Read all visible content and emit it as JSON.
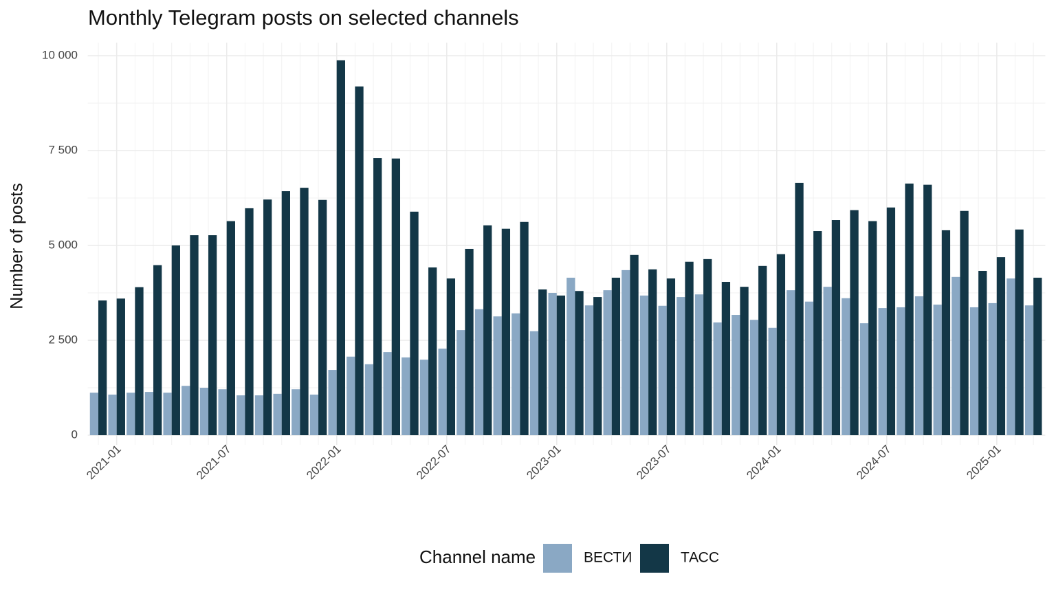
{
  "chart_data": {
    "type": "bar",
    "title": "Monthly Telegram posts on selected channels",
    "y_label": "Number of posts",
    "legend_title": "Channel name",
    "categories": [
      null,
      "2021-01",
      null,
      null,
      null,
      null,
      null,
      "2021-07",
      null,
      null,
      null,
      null,
      null,
      "2022-01",
      null,
      null,
      null,
      null,
      null,
      "2022-07",
      null,
      null,
      null,
      null,
      null,
      "2023-01",
      null,
      null,
      null,
      null,
      null,
      "2023-07",
      null,
      null,
      null,
      null,
      null,
      "2024-01",
      null,
      null,
      null,
      null,
      null,
      "2024-07",
      null,
      null,
      null,
      null,
      null,
      "2025-01",
      null,
      null
    ],
    "series": [
      {
        "name": "ВЕСТИ",
        "color": "#8aa8c4",
        "values": [
          1120,
          1070,
          1120,
          1140,
          1120,
          1300,
          1250,
          1210,
          1050,
          1050,
          1090,
          1210,
          1070,
          1720,
          2070,
          1870,
          2190,
          2050,
          1990,
          2280,
          2770,
          3320,
          3130,
          3210,
          2740,
          3750,
          4150,
          3420,
          3820,
          4350,
          3680,
          3410,
          3640,
          3710,
          2970,
          3170,
          3040,
          2830,
          3820,
          3520,
          3910,
          3610,
          2950,
          3350,
          3370,
          3660,
          3440,
          4170,
          3370,
          3480,
          4130,
          3420
        ]
      },
      {
        "name": "ТАСС",
        "color": "#133747",
        "values": [
          3550,
          3600,
          3900,
          4480,
          5000,
          5270,
          5270,
          5640,
          5980,
          6210,
          6430,
          6520,
          6200,
          9880,
          9190,
          7300,
          7290,
          5890,
          4420,
          4130,
          4910,
          5530,
          5440,
          5620,
          3840,
          3680,
          3800,
          3640,
          4150,
          4750,
          4370,
          4130,
          4570,
          4640,
          4040,
          3910,
          4460,
          4770,
          6650,
          5380,
          5670,
          5930,
          5640,
          6000,
          6630,
          6600,
          5400,
          5910,
          4330,
          4690,
          5420,
          4150
        ]
      }
    ],
    "ylim": [
      0,
      10000
    ],
    "yticks": [
      0,
      {
        "value": 2500,
        "label": "2 500"
      },
      {
        "value": 5000,
        "label": "5 000"
      },
      {
        "value": 7500,
        "label": "7 500"
      },
      {
        "value": 10000,
        "label": "10 000"
      }
    ],
    "grid": true,
    "legend_position": "bottom"
  }
}
